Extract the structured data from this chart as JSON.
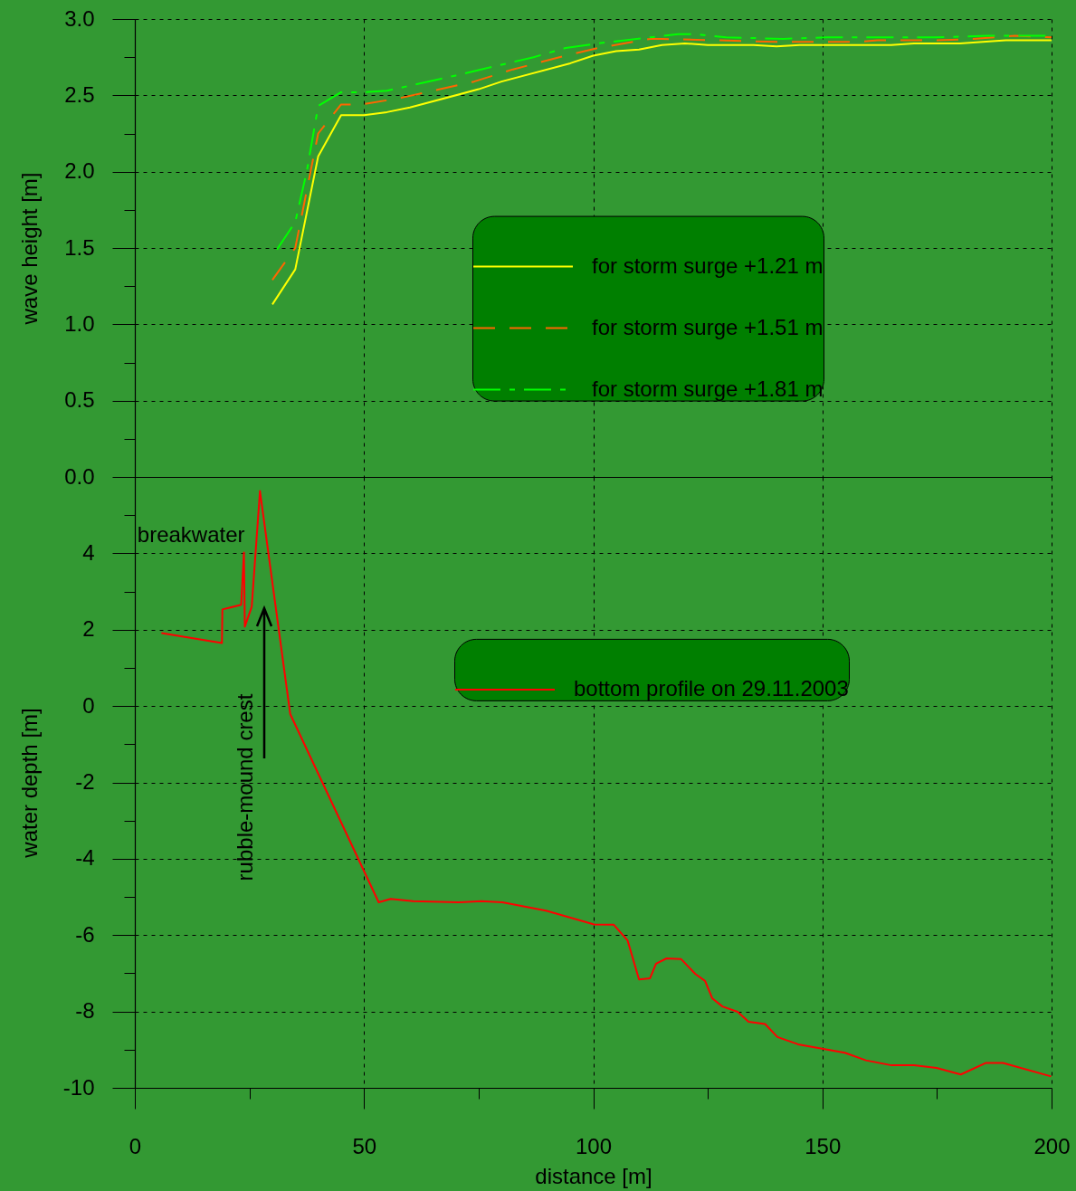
{
  "chart_data": [
    {
      "type": "line",
      "ylabel": "wave height [m]",
      "xlim": [
        0,
        200
      ],
      "xticks": [
        0,
        50,
        100,
        150,
        200
      ],
      "ylim": [
        0,
        3
      ],
      "yticks": [
        {
          "value": 0,
          "label": "0.0"
        },
        {
          "value": 0.25,
          "label": null
        },
        {
          "value": 0.5,
          "label": "0.5"
        },
        {
          "value": 0.75,
          "label": null
        },
        {
          "value": 1,
          "label": "1.0"
        },
        {
          "value": 1.25,
          "label": null
        },
        {
          "value": 1.5,
          "label": "1.5"
        },
        {
          "value": 1.75,
          "label": null
        },
        {
          "value": 2,
          "label": "2.0"
        },
        {
          "value": 2.25,
          "label": null
        },
        {
          "value": 2.5,
          "label": "2.5"
        },
        {
          "value": 2.75,
          "label": null
        },
        {
          "value": 3,
          "label": "3.0"
        }
      ],
      "grid": true,
      "legend": "right",
      "tick_labels": "y",
      "series": [
        {
          "name": "for storm surge +1.21 m",
          "color": "#ffff00",
          "line_style": "solid",
          "x": [
            30,
            35,
            40,
            45,
            50,
            55,
            60,
            75,
            80,
            95,
            100,
            105,
            110,
            115,
            120,
            125,
            135,
            140,
            145,
            165,
            170,
            180,
            190,
            200
          ],
          "values": [
            1.13,
            1.36,
            2.1,
            2.37,
            2.37,
            2.39,
            2.42,
            2.54,
            2.59,
            2.71,
            2.76,
            2.79,
            2.8,
            2.83,
            2.84,
            2.83,
            2.83,
            2.82,
            2.83,
            2.83,
            2.84,
            2.84,
            2.86,
            2.86
          ]
        },
        {
          "name": "for storm surge +1.51 m",
          "color": "#ff6600",
          "line_style": "dashed",
          "x": [
            30,
            35,
            40,
            45,
            49.5,
            57.5,
            74,
            82.5,
            94,
            101,
            112.5,
            115,
            140,
            150,
            157.5,
            162,
            175,
            183,
            192,
            200
          ],
          "values": [
            1.29,
            1.5,
            2.25,
            2.44,
            2.44,
            2.48,
            2.59,
            2.67,
            2.76,
            2.81,
            2.87,
            2.87,
            2.85,
            2.85,
            2.85,
            2.86,
            2.86,
            2.87,
            2.89,
            2.88
          ]
        },
        {
          "name": "for storm surge +1.81 m",
          "color": "#00ff00",
          "line_style": "dashdot",
          "x": [
            31,
            35,
            37.5,
            40,
            45,
            50,
            55,
            70,
            87,
            94,
            101,
            112.5,
            118.5,
            122.5,
            129,
            141.5,
            151,
            174.5,
            186,
            200
          ],
          "values": [
            1.49,
            1.67,
            2.0,
            2.43,
            2.52,
            2.52,
            2.53,
            2.63,
            2.75,
            2.81,
            2.84,
            2.88,
            2.9,
            2.9,
            2.88,
            2.87,
            2.88,
            2.88,
            2.89,
            2.89
          ]
        }
      ]
    },
    {
      "type": "line",
      "ylabel": "water depth [m]",
      "xlabel": "distance [m]",
      "xlim": [
        0,
        200
      ],
      "xticks": [
        0,
        {
          "value": 25,
          "label": null
        },
        50,
        {
          "value": 75,
          "label": null
        },
        100,
        {
          "value": 125,
          "label": null
        },
        150,
        {
          "value": 175,
          "label": null
        },
        200
      ],
      "ylim": [
        -10,
        6
      ],
      "yticks": [
        -10,
        {
          "value": -9,
          "label": null
        },
        -8,
        {
          "value": -7,
          "label": null
        },
        -6,
        {
          "value": -5,
          "label": null
        },
        -4,
        {
          "value": -3,
          "label": null
        },
        -2,
        {
          "value": -1,
          "label": null
        },
        0,
        {
          "value": 1,
          "label": null
        },
        2,
        {
          "value": 3,
          "label": null
        },
        4,
        {
          "value": 5,
          "label": null
        }
      ],
      "grid": true,
      "legend": "top right",
      "annotations": [
        {
          "text": "breakwater",
          "x": 24,
          "y": 4
        },
        "rubble-mound crest"
      ],
      "series": [
        {
          "name": "bottom profile on 29.11.2003",
          "color": "#ff0000",
          "line_style": "solid",
          "x": [
            5.8,
            19,
            19.1,
            23.2,
            23.8,
            24,
            25.5,
            27.3,
            33.9,
            53.2,
            55.8,
            60.7,
            70.6,
            75.6,
            80.2,
            89.7,
            100.2,
            104.5,
            107.5,
            110,
            112.4,
            113.7,
            116,
            119.2,
            122.3,
            124.4,
            126,
            128.2,
            131.5,
            133.9,
            137.5,
            140.2,
            144.7,
            154.9,
            159.5,
            165.1,
            170,
            174.9,
            180.2,
            185.6,
            189.4,
            199.9
          ],
          "values": [
            1.91,
            1.65,
            2.53,
            2.65,
            4.02,
            2.08,
            2.6,
            5.63,
            -0.21,
            -5.14,
            -5.05,
            -5.11,
            -5.14,
            -5.11,
            -5.14,
            -5.36,
            -5.72,
            -5.73,
            -6.14,
            -7.16,
            -7.13,
            -6.75,
            -6.61,
            -6.63,
            -7.02,
            -7.2,
            -7.66,
            -7.87,
            -8.01,
            -8.27,
            -8.33,
            -8.67,
            -8.86,
            -9.08,
            -9.28,
            -9.41,
            -9.41,
            -9.48,
            -9.65,
            -9.35,
            -9.35,
            -9.7
          ]
        }
      ]
    }
  ]
}
